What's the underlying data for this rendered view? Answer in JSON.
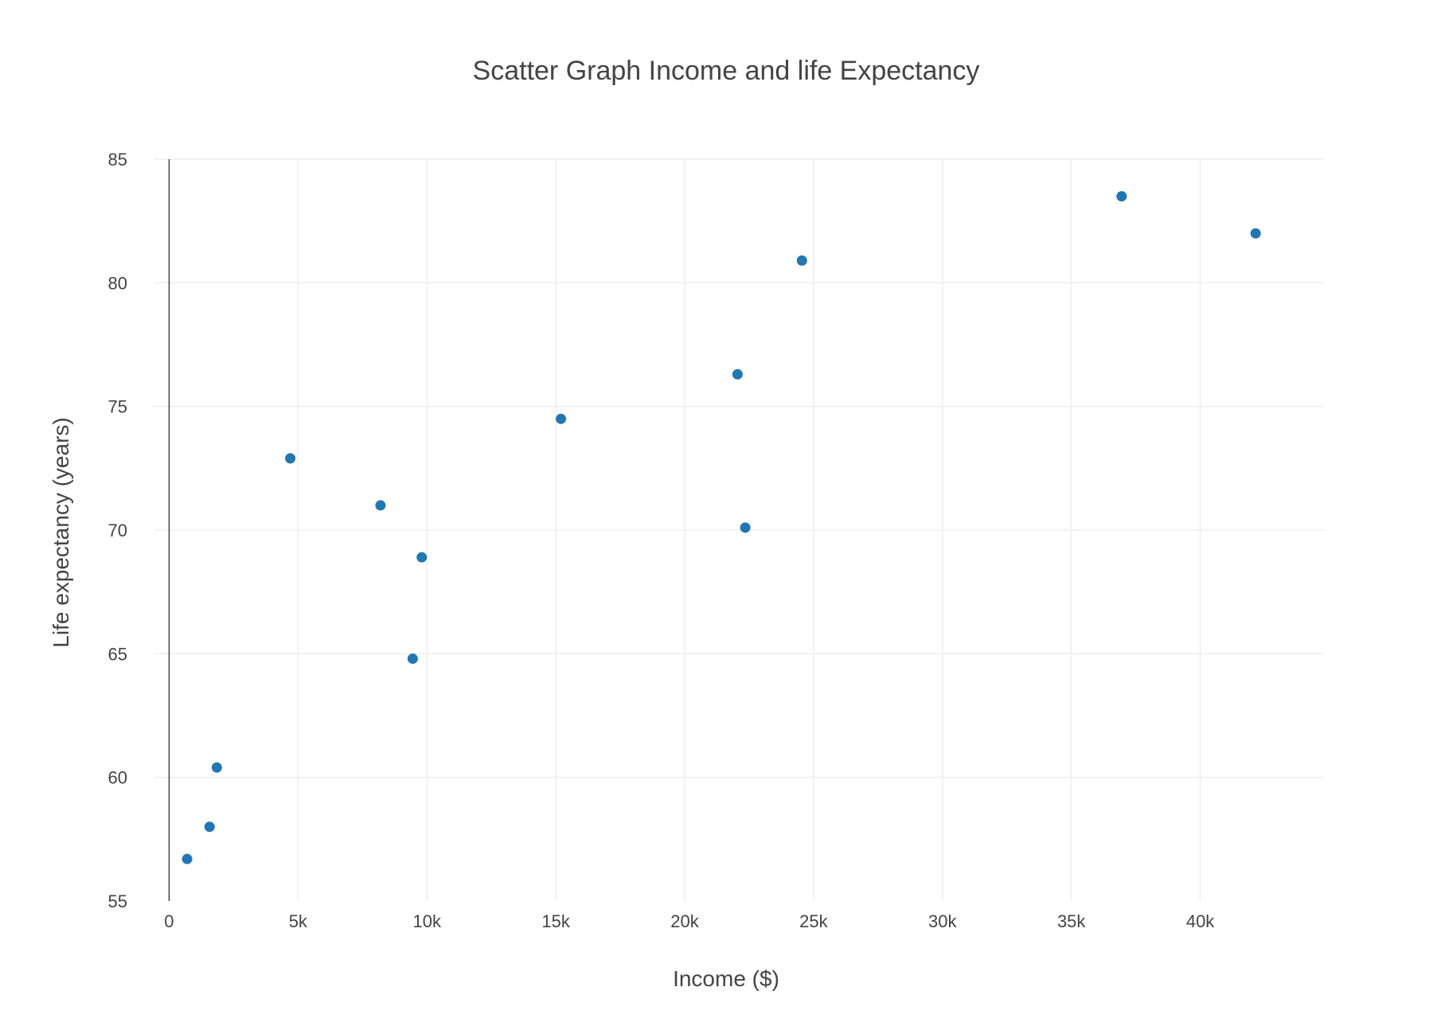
{
  "chart_data": {
    "type": "scatter",
    "title": "Scatter Graph Income and life Expectancy",
    "xlabel": "Income ($)",
    "ylabel": "Life expectancy (years)",
    "xlim": [
      -600,
      44800
    ],
    "ylim": [
      55,
      85
    ],
    "x_ticks": [
      0,
      5000,
      10000,
      15000,
      20000,
      25000,
      30000,
      35000,
      40000
    ],
    "x_tick_labels": [
      "0",
      "5k",
      "10k",
      "15k",
      "20k",
      "25k",
      "30k",
      "35k",
      "40k"
    ],
    "y_ticks": [
      55,
      60,
      65,
      70,
      75,
      80,
      85
    ],
    "y_tick_labels": [
      "55",
      "60",
      "65",
      "70",
      "75",
      "80",
      "85"
    ],
    "grid": true,
    "legend": "none",
    "marker_color": "#1f77b4",
    "series": [
      {
        "points": [
          {
            "x": 700,
            "y": 56.7
          },
          {
            "x": 1570,
            "y": 58.0
          },
          {
            "x": 1850,
            "y": 60.4
          },
          {
            "x": 4700,
            "y": 72.9
          },
          {
            "x": 8200,
            "y": 71.0
          },
          {
            "x": 9450,
            "y": 64.8
          },
          {
            "x": 9800,
            "y": 68.9
          },
          {
            "x": 15200,
            "y": 74.5
          },
          {
            "x": 22050,
            "y": 76.3
          },
          {
            "x": 22350,
            "y": 70.1
          },
          {
            "x": 24550,
            "y": 80.9
          },
          {
            "x": 36950,
            "y": 83.5
          },
          {
            "x": 42150,
            "y": 82.0
          }
        ]
      }
    ]
  }
}
